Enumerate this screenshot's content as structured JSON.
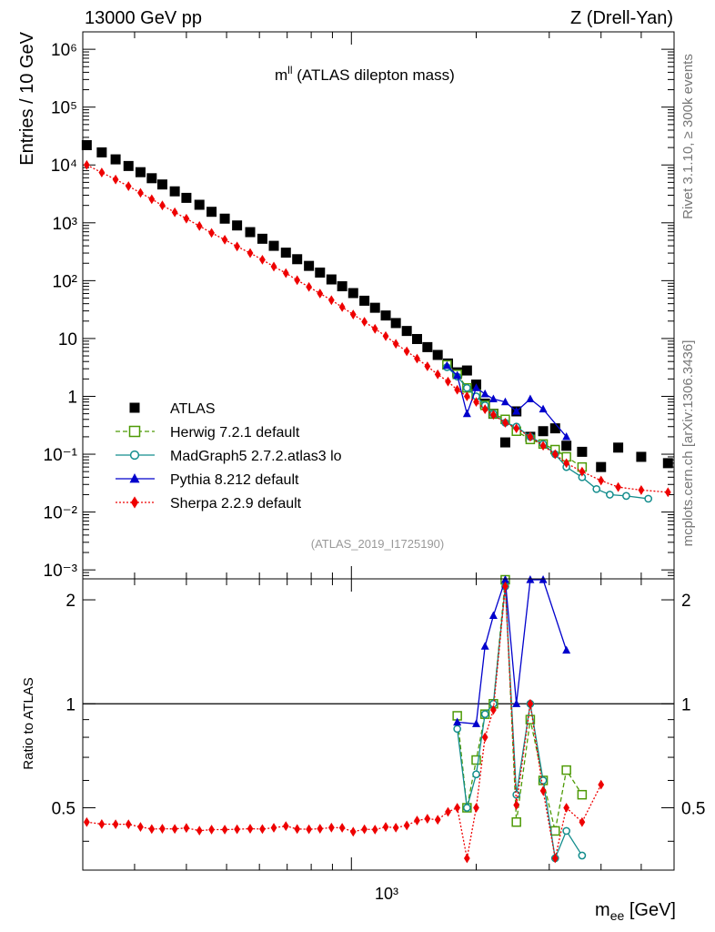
{
  "header": {
    "energy_label": "13000 GeV pp",
    "process_label": "Z (Drell-Yan)",
    "rivet_label": "Rivet 3.1.10, ≥ 300k events",
    "mcplots_label": "mcplots.cern.ch [arXiv:1306.3436]",
    "analysis_label": "(ATLAS_2019_I1725190)"
  },
  "chart_data": {
    "type": "scatter",
    "title_main": "m",
    "title_sup": "ll",
    "title_rest": " (ATLAS dilepton mass)",
    "ylabel": "Entries / 10 GeV",
    "ratio_ylabel": "Ratio to ATLAS",
    "xlabel_main": "m",
    "xlabel_sub": "ee",
    "xlabel_rest": " [GeV]",
    "xscale": "log",
    "xlim": [
      225,
      6000
    ],
    "ylim": [
      0.0007,
      2000000
    ],
    "ratio_ylim": [
      0.33,
      2.3
    ],
    "main_yticks": [
      "10⁻³",
      "10⁻²",
      "10⁻¹",
      "1",
      "10",
      "10²",
      "10³",
      "10⁴",
      "10⁵",
      "10⁶"
    ],
    "ratio_yticks": [
      "0.5",
      "1",
      "2"
    ],
    "xtick_label": "10³",
    "legend_position": "middle-left",
    "series": [
      {
        "name": "ATLAS",
        "color": "#000000",
        "marker": "square-filled",
        "x": [
          230,
          250,
          270,
          290,
          310,
          330,
          350,
          375,
          400,
          430,
          460,
          495,
          530,
          570,
          610,
          650,
          695,
          740,
          790,
          840,
          895,
          950,
          1010,
          1075,
          1140,
          1210,
          1280,
          1360,
          1440,
          1525,
          1615,
          1710,
          1800,
          1900,
          2000,
          2100,
          2200,
          2350,
          2500,
          2700,
          2900,
          3100,
          3300,
          3600,
          4000,
          4400,
          5000,
          5800
        ],
        "y": [
          22000,
          16500,
          12500,
          9600,
          7500,
          5900,
          4600,
          3500,
          2700,
          2050,
          1550,
          1180,
          900,
          690,
          530,
          400,
          305,
          235,
          180,
          138,
          105,
          80,
          61,
          45,
          34,
          25,
          18.5,
          13.5,
          9.8,
          7.1,
          5.2,
          3.7,
          2.6,
          2.8,
          1.6,
          0.75,
          0.5,
          0.16,
          0.55,
          0.2,
          0.25,
          0.28,
          0.14,
          0.11,
          0.06,
          0.13,
          0.09,
          0.07
        ]
      },
      {
        "name": "Herwig 7.2.1 default",
        "color": "#4e9a06",
        "marker": "square-open",
        "x": [
          1700,
          1800,
          1900,
          2000,
          2100,
          2200,
          2350,
          2500,
          2700,
          2900,
          3100,
          3300,
          3600
        ],
        "y": [
          3.5,
          2.4,
          1.4,
          1.1,
          0.7,
          0.5,
          0.4,
          0.25,
          0.18,
          0.15,
          0.12,
          0.09,
          0.06
        ]
      },
      {
        "name": "MadGraph5 2.7.2.atlas3 lo",
        "color": "#138d8d",
        "marker": "circle-open",
        "x": [
          1700,
          1800,
          1900,
          2000,
          2100,
          2200,
          2350,
          2500,
          2700,
          2900,
          3100,
          3300,
          3600,
          3900,
          4200,
          4600,
          5200
        ],
        "y": [
          3.2,
          2.2,
          1.4,
          1.0,
          0.7,
          0.5,
          0.35,
          0.3,
          0.2,
          0.15,
          0.1,
          0.06,
          0.04,
          0.025,
          0.02,
          0.019,
          0.017
        ]
      },
      {
        "name": "Pythia 8.212 default",
        "color": "#0000cc",
        "marker": "triangle-filled",
        "x": [
          1700,
          1800,
          1900,
          2000,
          2100,
          2200,
          2350,
          2500,
          2700,
          2900,
          3300
        ],
        "y": [
          3.4,
          2.3,
          0.5,
          1.4,
          1.1,
          0.9,
          0.8,
          0.55,
          0.9,
          0.6,
          0.2
        ]
      },
      {
        "name": "Sherpa 2.2.9 default",
        "color": "#ee0000",
        "marker": "diamond-filled",
        "x": [
          230,
          250,
          270,
          290,
          310,
          330,
          350,
          375,
          400,
          430,
          460,
          495,
          530,
          570,
          610,
          650,
          695,
          740,
          790,
          840,
          895,
          950,
          1010,
          1075,
          1140,
          1210,
          1280,
          1360,
          1440,
          1525,
          1615,
          1710,
          1800,
          1900,
          2000,
          2100,
          2200,
          2350,
          2500,
          2700,
          2900,
          3100,
          3300,
          3600,
          4000,
          4400,
          5000,
          5800
        ],
        "y": [
          10000,
          7400,
          5600,
          4300,
          3300,
          2560,
          2000,
          1520,
          1180,
          880,
          670,
          510,
          390,
          300,
          230,
          175,
          135,
          102,
          78,
          60,
          46,
          35,
          26,
          19.5,
          14.7,
          11,
          8.1,
          6,
          4.5,
          3.3,
          2.4,
          1.8,
          1.3,
          1.0,
          0.8,
          0.6,
          0.48,
          0.35,
          0.28,
          0.2,
          0.14,
          0.1,
          0.07,
          0.05,
          0.035,
          0.027,
          0.024,
          0.022
        ]
      }
    ]
  }
}
